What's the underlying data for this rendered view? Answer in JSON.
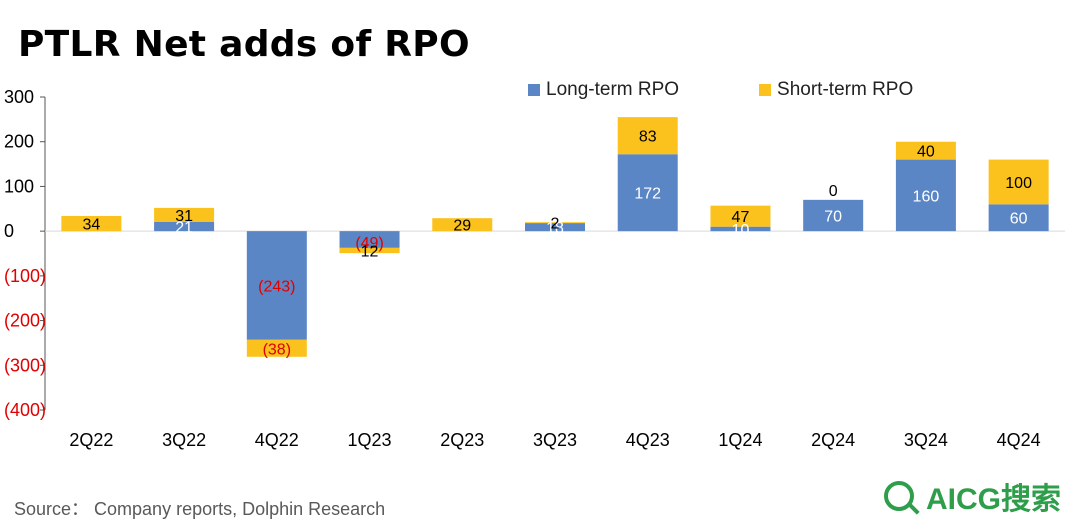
{
  "title": "PTLR Net adds of RPO",
  "source": "Source： Company reports, Dolphin Research",
  "watermark": "Dolphin Research",
  "brand": "AICG搜索",
  "colors": {
    "long_term": "#5b86c6",
    "short_term": "#fbc21e",
    "negative_label": "#e00000",
    "axis": "#555555"
  },
  "chart_data": {
    "type": "bar",
    "stacked": true,
    "title": "PTLR Net adds of RPO",
    "categories": [
      "2Q22",
      "3Q22",
      "4Q22",
      "1Q23",
      "2Q23",
      "3Q23",
      "4Q23",
      "1Q24",
      "2Q24",
      "3Q24",
      "4Q24"
    ],
    "series": [
      {
        "name": "Long-term RPO",
        "values": [
          0,
          21,
          -243,
          -49,
          0,
          18,
          172,
          10,
          70,
          160,
          60
        ]
      },
      {
        "name": "Short-term RPO",
        "values": [
          34,
          31,
          -38,
          12,
          29,
          2,
          83,
          47,
          0,
          40,
          100
        ]
      }
    ],
    "data_labels": {
      "long_term": [
        "",
        "21",
        "(243)",
        "(49)",
        "",
        "18",
        "172",
        "10",
        "70",
        "160",
        "60"
      ],
      "short_term": [
        "34",
        "31",
        "(38)",
        "12",
        "29",
        "2",
        "83",
        "47",
        "0",
        "40",
        "100"
      ]
    },
    "y_ticks": [
      "300",
      "200",
      "100",
      "0",
      "(100)",
      "(200)",
      "(300)",
      "(400)"
    ],
    "y_tick_values": [
      300,
      200,
      100,
      0,
      -100,
      -200,
      -300,
      -400
    ],
    "ylim": [
      -400,
      300
    ],
    "legend": "top-right",
    "grid": false
  }
}
